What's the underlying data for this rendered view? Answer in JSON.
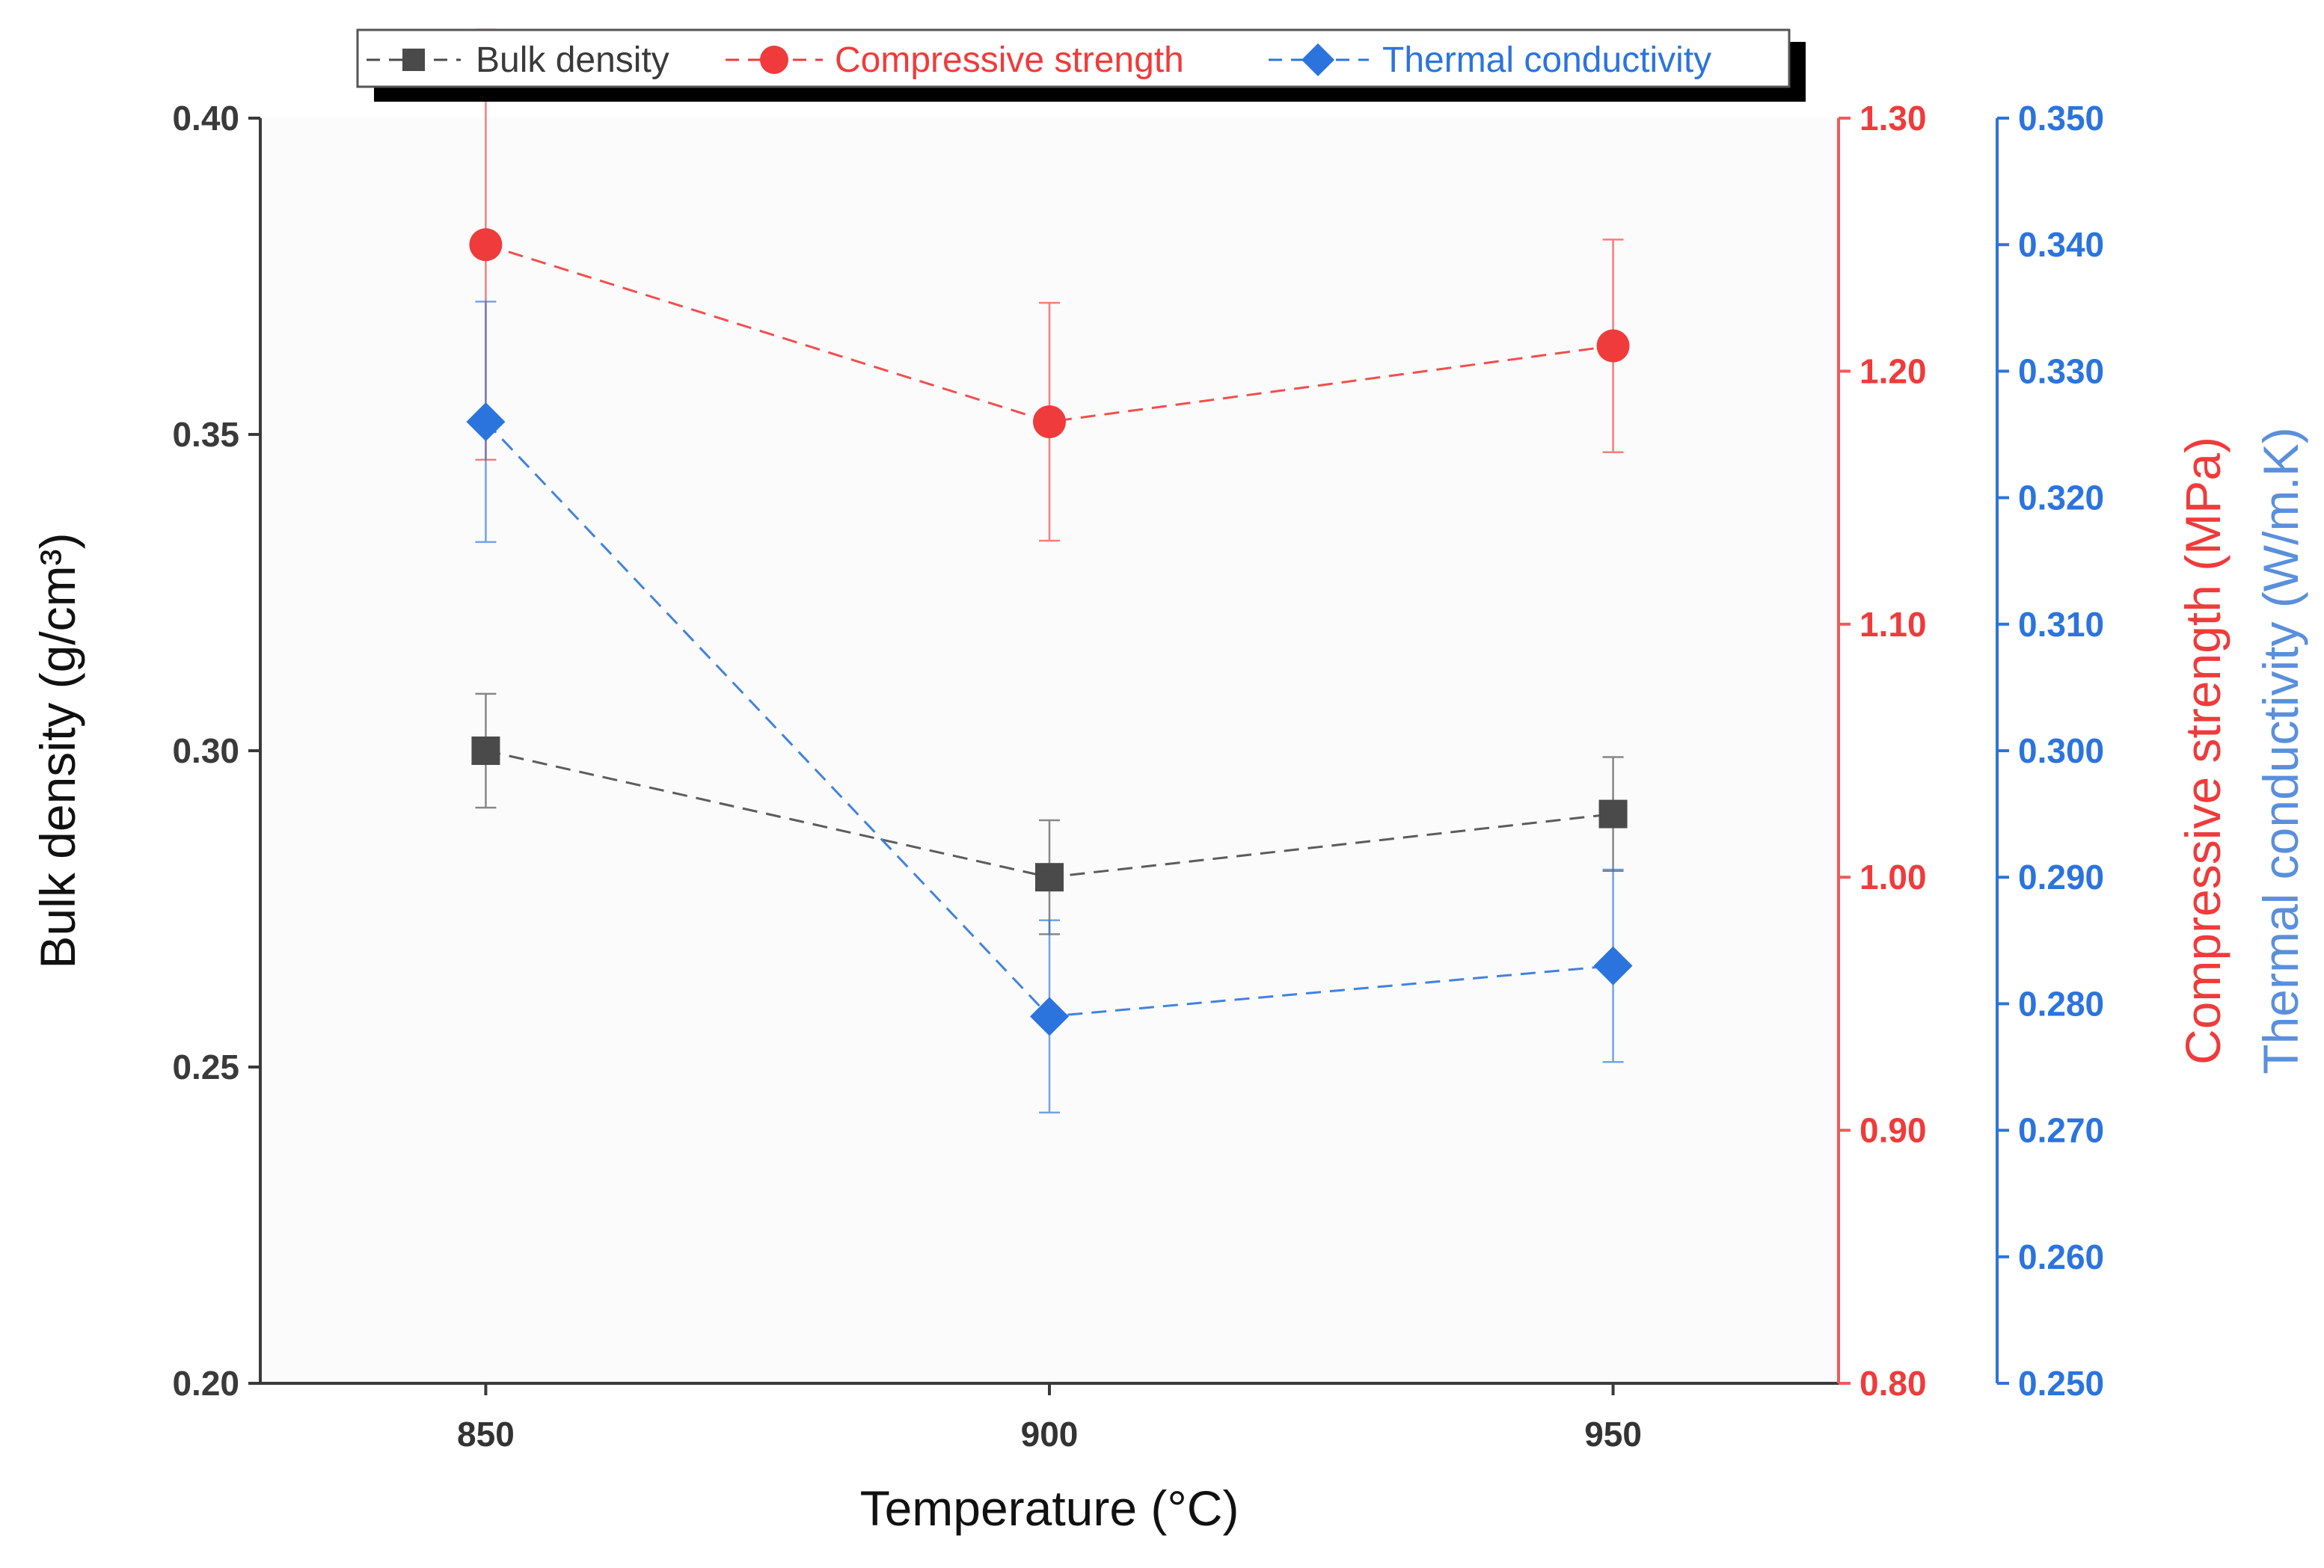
{
  "chart_data": {
    "type": "line",
    "categories": [
      "850",
      "900",
      "950"
    ],
    "x": [
      850,
      900,
      950
    ],
    "xlim": [
      830,
      970
    ],
    "xticks": [
      850,
      900,
      950
    ],
    "xlabel": "Temperature (°C)",
    "legend_position": "top",
    "legend_entries": [
      "Bulk density",
      "Compressive strength",
      "Thermal conductivity"
    ],
    "axes": [
      {
        "id": "left",
        "label": "Bulk density (g/cm³)",
        "ylim": [
          0.2,
          0.4
        ],
        "ticks": [
          "0.20",
          "0.25",
          "0.30",
          "0.35",
          "0.40"
        ],
        "color": "#3a3a3a"
      },
      {
        "id": "right1",
        "label": "Compressive strength (MPa)",
        "ylim": [
          0.8,
          1.3
        ],
        "ticks": [
          "0.80",
          "0.90",
          "1.00",
          "1.10",
          "1.20",
          "1.30"
        ],
        "color": "#ef3b3b"
      },
      {
        "id": "right2",
        "label": "Thermal conductivity (W/m.K)",
        "ylim": [
          0.25,
          0.35
        ],
        "ticks": [
          "0.250",
          "0.260",
          "0.270",
          "0.280",
          "0.290",
          "0.300",
          "0.310",
          "0.320",
          "0.330",
          "0.340",
          "0.350"
        ],
        "color": "#2c74dd"
      }
    ],
    "series": [
      {
        "name": "Bulk density",
        "axis": "left",
        "marker": "square",
        "color": "#4a4a4a",
        "values": [
          0.3,
          0.28,
          0.29
        ],
        "errors": [
          0.009,
          0.009,
          0.009
        ]
      },
      {
        "name": "Compressive strength",
        "axis": "right1",
        "marker": "circle",
        "color": "#ef3b3b",
        "values": [
          1.25,
          1.18,
          1.21
        ],
        "errors": [
          0.085,
          0.047,
          0.042
        ]
      },
      {
        "name": "Thermal conductivity",
        "axis": "right2",
        "marker": "diamond",
        "color": "#2c74dd",
        "values": [
          0.326,
          0.279,
          0.283
        ],
        "errors": [
          0.0095,
          0.0076,
          0.0076
        ]
      }
    ]
  }
}
